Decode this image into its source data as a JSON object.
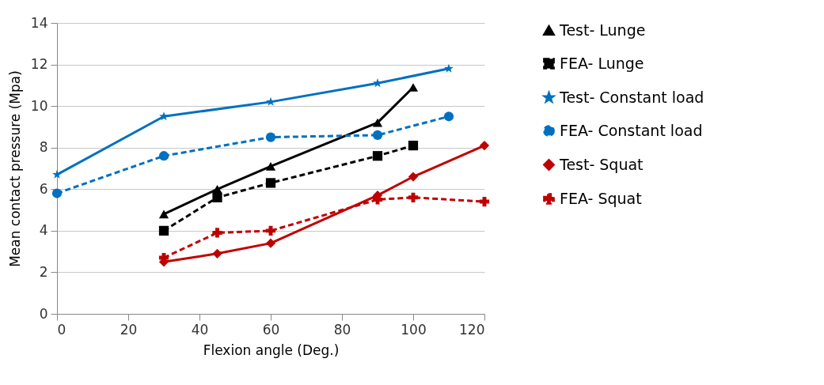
{
  "chart_data": {
    "type": "line",
    "xlabel": "Flexion angle (Deg.)",
    "ylabel": "Mean contact pressure (Mpa)",
    "xlim": [
      0,
      120
    ],
    "xticks": [
      0,
      20,
      40,
      60,
      80,
      100,
      120
    ],
    "ylim": [
      0,
      14
    ],
    "yticks": [
      0,
      2,
      4,
      6,
      8,
      10,
      12,
      14
    ],
    "grid": "y",
    "legend": "right",
    "series": [
      {
        "name": "Test- Lunge",
        "color": "#000000",
        "marker": "triangle",
        "line_style": "solid",
        "x": [
          30,
          45,
          60,
          90,
          100
        ],
        "values": [
          4.8,
          6.0,
          7.1,
          9.2,
          10.9
        ]
      },
      {
        "name": "FEA- Lunge",
        "color": "#000000",
        "marker": "square",
        "line_style": "dashed",
        "x": [
          30,
          45,
          60,
          90,
          100
        ],
        "values": [
          4.0,
          5.6,
          6.3,
          7.6,
          8.1
        ]
      },
      {
        "name": "Test- Constant load",
        "color": "#0070c0",
        "marker": "star",
        "line_style": "solid",
        "x": [
          0,
          30,
          60,
          90,
          110
        ],
        "values": [
          6.7,
          9.5,
          10.2,
          11.1,
          11.8
        ]
      },
      {
        "name": "FEA- Constant load",
        "color": "#0070c0",
        "marker": "circle",
        "line_style": "dashed",
        "x": [
          0,
          30,
          60,
          90,
          110
        ],
        "values": [
          5.8,
          7.6,
          8.5,
          8.6,
          9.5
        ]
      },
      {
        "name": "Test-  Squat",
        "color": "#c00000",
        "marker": "diamond",
        "line_style": "solid",
        "x": [
          30,
          45,
          60,
          90,
          100,
          120
        ],
        "values": [
          2.5,
          2.9,
          3.4,
          5.7,
          6.6,
          8.1
        ]
      },
      {
        "name": "FEA- Squat",
        "color": "#c00000",
        "marker": "cross",
        "line_style": "dashed",
        "x": [
          30,
          45,
          60,
          90,
          100,
          120
        ],
        "values": [
          2.7,
          3.9,
          4.0,
          5.5,
          5.6,
          5.4
        ]
      }
    ]
  }
}
